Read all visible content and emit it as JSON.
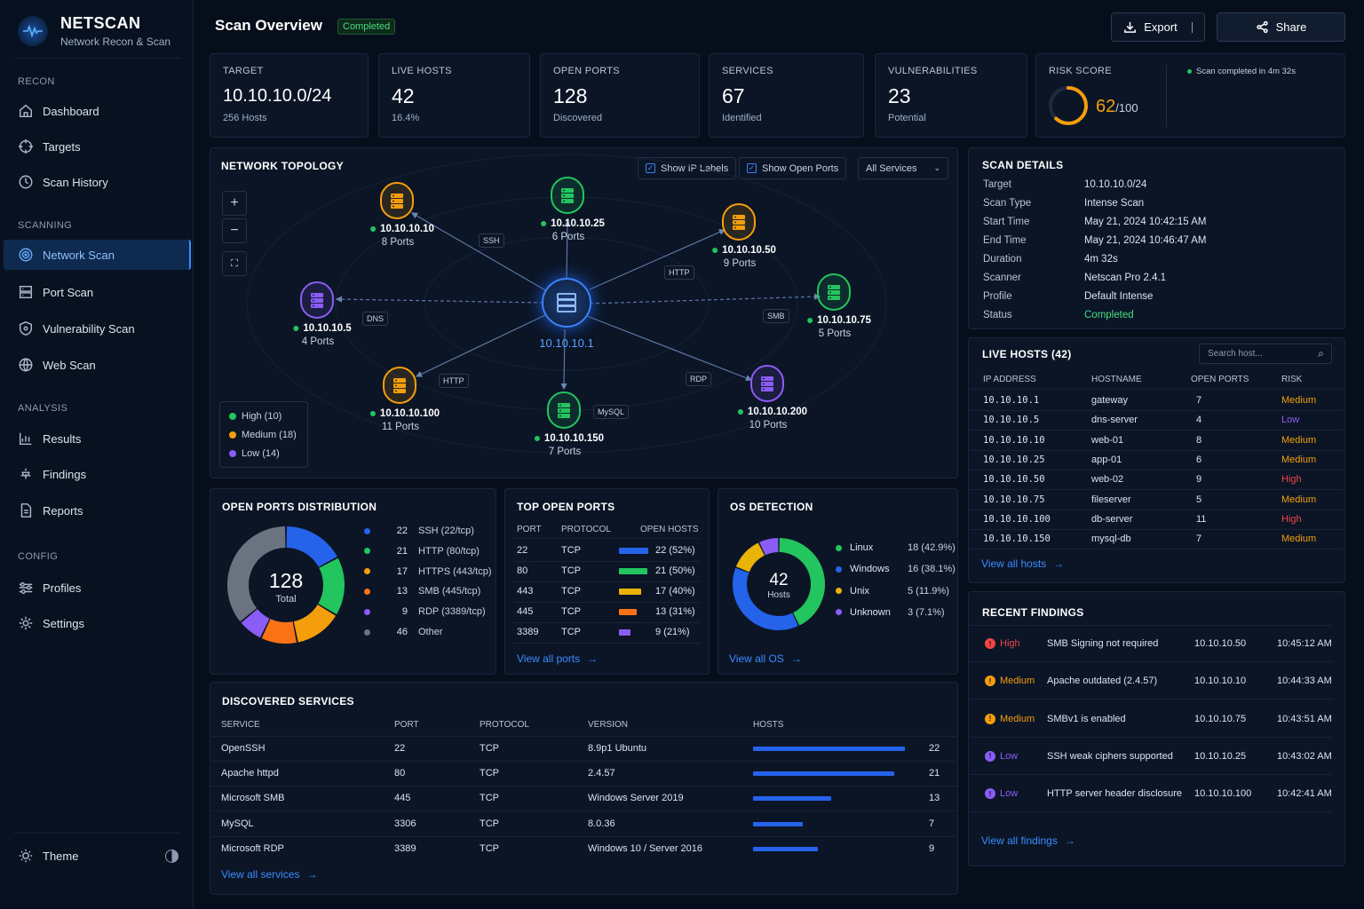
{
  "brand": {
    "name": "NETSCAN",
    "subtitle": "Network Recon & Scan"
  },
  "sidebar": {
    "sections": [
      "RECON",
      "SCANNING",
      "ANALYSIS",
      "CONFIG"
    ],
    "items": [
      {
        "label": "Dashboard",
        "icon": "home-icon"
      },
      {
        "label": "Targets",
        "icon": "crosshair-icon"
      },
      {
        "label": "Scan History",
        "icon": "clock-icon"
      },
      {
        "label": "Network Scan",
        "icon": "radar-icon",
        "active": true
      },
      {
        "label": "Port Scan",
        "icon": "server-icon"
      },
      {
        "label": "Vulnerability Scan",
        "icon": "shield-icon"
      },
      {
        "label": "Web Scan",
        "icon": "globe-icon"
      },
      {
        "label": "Results",
        "icon": "chart-icon"
      },
      {
        "label": "Findings",
        "icon": "bug-icon"
      },
      {
        "label": "Reports",
        "icon": "report-icon"
      },
      {
        "label": "Profiles",
        "icon": "sliders-icon"
      },
      {
        "label": "Settings",
        "icon": "gear-icon"
      }
    ],
    "theme_label": "Theme"
  },
  "header": {
    "title": "Scan Overview",
    "status": "Completed",
    "export_label": "Export",
    "share_label": "Share"
  },
  "stats": [
    {
      "label": "TARGET",
      "value": "10.10.10.0/24",
      "sub": "256 Hosts"
    },
    {
      "label": "LIVE HOSTS",
      "value": "42",
      "sub": "16.4%"
    },
    {
      "label": "OPEN PORTS",
      "value": "128",
      "sub": "Discovered"
    },
    {
      "label": "SERVICES",
      "value": "67",
      "sub": "Identified"
    },
    {
      "label": "VULNERABILITIES",
      "value": "23",
      "sub": "Potential"
    }
  ],
  "risk": {
    "label": "RISK SCORE",
    "value": "62",
    "max": "/100",
    "score_fraction": 0.62,
    "note": "Scan completed in 4m 32s"
  },
  "topology": {
    "title": "NETWORK TOPOLOGY",
    "show_ip_labels": "Show IP Labels",
    "show_open_ports": "Show Open Ports",
    "filter": "All Services",
    "center": "10.10.10.1",
    "nodes": [
      {
        "ip": "10.10.10.10",
        "ports": "8 Ports",
        "color": "#f59e0b"
      },
      {
        "ip": "10.10.10.25",
        "ports": "6 Ports",
        "color": "#22c55e"
      },
      {
        "ip": "10.10.10.50",
        "ports": "9 Ports",
        "color": "#f59e0b"
      },
      {
        "ip": "10.10.10.5",
        "ports": "4 Ports",
        "color": "#8b5cf6"
      },
      {
        "ip": "10.10.10.75",
        "ports": "5 Ports",
        "color": "#22c55e"
      },
      {
        "ip": "10.10.10.100",
        "ports": "11 Ports",
        "color": "#f59e0b"
      },
      {
        "ip": "10.10.10.150",
        "ports": "7 Ports",
        "color": "#22c55e"
      },
      {
        "ip": "10.10.10.200",
        "ports": "10 Ports",
        "color": "#8b5cf6"
      }
    ],
    "edge_labels": [
      "SSH",
      "HTTP",
      "DNS",
      "SMB",
      "HTTP",
      "MySQL",
      "RDP"
    ],
    "legend": [
      {
        "label": "High (10)",
        "color": "#22c55e"
      },
      {
        "label": "Medium (18)",
        "color": "#f59e0b"
      },
      {
        "label": "Low (14)",
        "color": "#8b5cf6"
      }
    ]
  },
  "scan_details": {
    "title": "SCAN DETAILS",
    "rows": [
      {
        "k": "Target",
        "v": "10.10.10.0/24"
      },
      {
        "k": "Scan Type",
        "v": "Intense Scan"
      },
      {
        "k": "Start Time",
        "v": "May 21, 2024 10:42:15 AM"
      },
      {
        "k": "End Time",
        "v": "May 21, 2024 10:46:47 AM"
      },
      {
        "k": "Duration",
        "v": "4m 32s"
      },
      {
        "k": "Scanner",
        "v": "Netscan Pro 2.4.1"
      },
      {
        "k": "Profile",
        "v": "Default Intense"
      },
      {
        "k": "Status",
        "v": "Completed"
      }
    ]
  },
  "live_hosts": {
    "title": "LIVE HOSTS (42)",
    "search_placeholder": "Search host...",
    "headers": [
      "IP ADDRESS",
      "HOSTNAME",
      "OPEN PORTS",
      "RISK"
    ],
    "rows": [
      {
        "ip": "10.10.10.1",
        "host": "gateway",
        "ports": "7",
        "risk": "Medium"
      },
      {
        "ip": "10.10.10.5",
        "host": "dns-server",
        "ports": "4",
        "risk": "Low"
      },
      {
        "ip": "10.10.10.10",
        "host": "web-01",
        "ports": "8",
        "risk": "Medium"
      },
      {
        "ip": "10.10.10.25",
        "host": "app-01",
        "ports": "6",
        "risk": "Medium"
      },
      {
        "ip": "10.10.10.50",
        "host": "web-02",
        "ports": "9",
        "risk": "High"
      },
      {
        "ip": "10.10.10.75",
        "host": "fileserver",
        "ports": "5",
        "risk": "Medium"
      },
      {
        "ip": "10.10.10.100",
        "host": "db-server",
        "ports": "11",
        "risk": "High"
      },
      {
        "ip": "10.10.10.150",
        "host": "mysql-db",
        "ports": "7",
        "risk": "Medium"
      }
    ],
    "view_all": "View all hosts"
  },
  "open_ports_dist": {
    "title": "OPEN PORTS DISTRIBUTION",
    "total": "128",
    "total_label": "Total",
    "items": [
      {
        "count": "22",
        "label": "SSH (22/tcp)",
        "color": "#2563eb",
        "value": 22
      },
      {
        "count": "21",
        "label": "HTTP (80/tcp)",
        "color": "#22c55e",
        "value": 21
      },
      {
        "count": "17",
        "label": "HTTPS (443/tcp)",
        "color": "#f59e0b",
        "value": 17
      },
      {
        "count": "13",
        "label": "SMB (445/tcp)",
        "color": "#f97316",
        "value": 13
      },
      {
        "count": "9",
        "label": "RDP (3389/tcp)",
        "color": "#8b5cf6",
        "value": 9
      },
      {
        "count": "46",
        "label": "Other",
        "color": "#6b7280",
        "value": 46
      }
    ]
  },
  "top_ports": {
    "title": "TOP OPEN PORTS",
    "headers": [
      "PORT",
      "PROTOCOL",
      "OPEN HOSTS"
    ],
    "rows": [
      {
        "port": "22",
        "proto": "TCP",
        "hosts": "22 (52%)",
        "frac": 0.52,
        "color": "#2563eb"
      },
      {
        "port": "80",
        "proto": "TCP",
        "hosts": "21 (50%)",
        "frac": 0.5,
        "color": "#22c55e"
      },
      {
        "port": "443",
        "proto": "TCP",
        "hosts": "17 (40%)",
        "frac": 0.4,
        "color": "#eab308"
      },
      {
        "port": "445",
        "proto": "TCP",
        "hosts": "13 (31%)",
        "frac": 0.31,
        "color": "#f97316"
      },
      {
        "port": "3389",
        "proto": "TCP",
        "hosts": "9 (21%)",
        "frac": 0.21,
        "color": "#8b5cf6"
      }
    ],
    "view_all": "View all ports"
  },
  "os_detection": {
    "title": "OS DETECTION",
    "total": "42",
    "total_label": "Hosts",
    "items": [
      {
        "name": "Linux",
        "val": "18 (42.9%)",
        "color": "#22c55e",
        "value": 18
      },
      {
        "name": "Windows",
        "val": "16 (38.1%)",
        "color": "#2563eb",
        "value": 16
      },
      {
        "name": "Unix",
        "val": "5 (11.9%)",
        "color": "#eab308",
        "value": 5
      },
      {
        "name": "Unknown",
        "val": "3 (7.1%)",
        "color": "#8b5cf6",
        "value": 3
      }
    ],
    "view_all": "View all OS"
  },
  "services": {
    "title": "DISCOVERED SERVICES",
    "headers": [
      "SERVICE",
      "PORT",
      "PROTOCOL",
      "VERSION",
      "HOSTS"
    ],
    "rows": [
      {
        "service": "OpenSSH",
        "port": "22",
        "proto": "TCP",
        "version": "8.9p1 Ubuntu",
        "hosts": "22",
        "frac": 0.82
      },
      {
        "service": "Apache httpd",
        "port": "80",
        "proto": "TCP",
        "version": "2.4.57",
        "hosts": "21",
        "frac": 0.76
      },
      {
        "service": "Microsoft SMB",
        "port": "445",
        "proto": "TCP",
        "version": "Windows Server 2019",
        "hosts": "13",
        "frac": 0.42
      },
      {
        "service": "MySQL",
        "port": "3306",
        "proto": "TCP",
        "version": "8.0.36",
        "hosts": "7",
        "frac": 0.27
      },
      {
        "service": "Microsoft RDP",
        "port": "3389",
        "proto": "TCP",
        "version": "Windows 10 / Server 2016",
        "hosts": "9",
        "frac": 0.35
      }
    ],
    "view_all": "View all services"
  },
  "findings": {
    "title": "RECENT FINDINGS",
    "rows": [
      {
        "sev": "High",
        "title": "SMB Signing not required",
        "ip": "10.10.10.50",
        "time": "10:45:12 AM"
      },
      {
        "sev": "Medium",
        "title": "Apache outdated (2.4.57)",
        "ip": "10.10.10.10",
        "time": "10:44:33 AM"
      },
      {
        "sev": "Medium",
        "title": "SMBv1 is enabled",
        "ip": "10.10.10.75",
        "time": "10:43:51 AM"
      },
      {
        "sev": "Low",
        "title": "SSH weak ciphers supported",
        "ip": "10.10.10.25",
        "time": "10:43:02 AM"
      },
      {
        "sev": "Low",
        "title": "HTTP server header disclosure",
        "ip": "10.10.10.100",
        "time": "10:42:41 AM"
      }
    ],
    "view_all": "View all findings"
  },
  "colors": {
    "accent": "#3b8cff",
    "high": "#ef4444",
    "medium": "#f59e0b",
    "low": "#8b5cf6",
    "ok": "#4ade80"
  }
}
